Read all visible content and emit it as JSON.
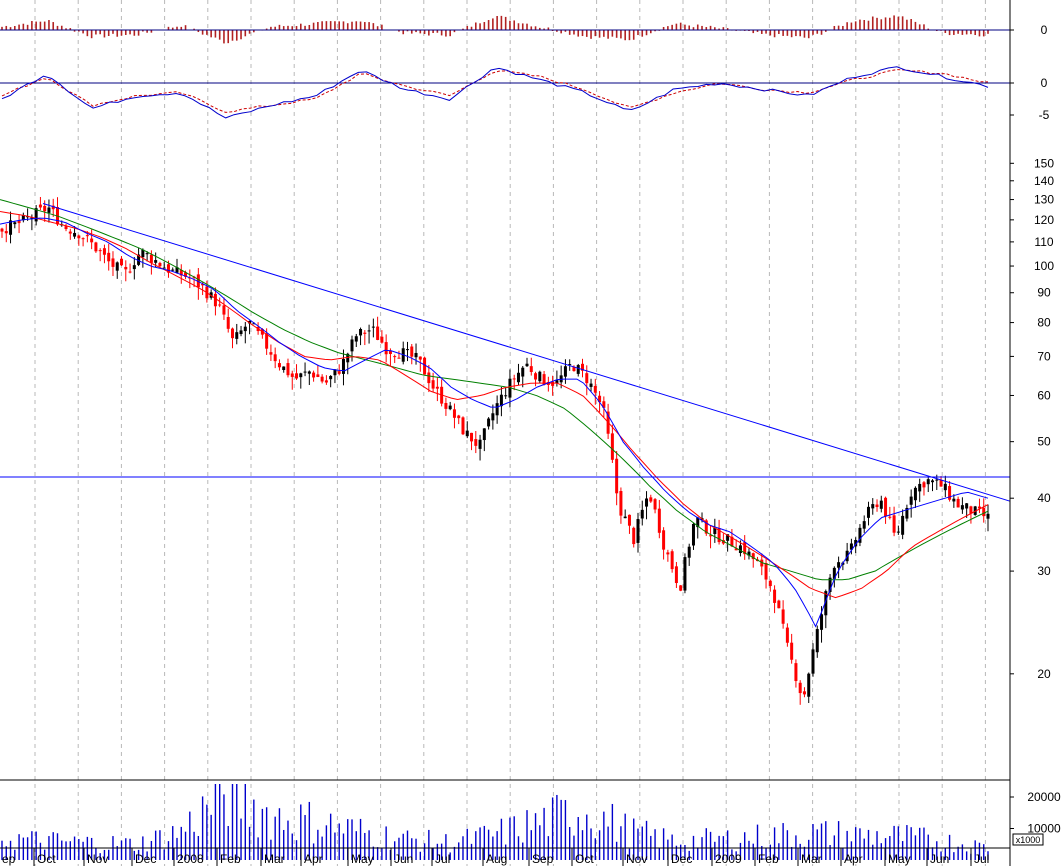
{
  "chart_data": [
    {
      "type": "bar",
      "panel": "histogram-oscillator",
      "zero_label": "0",
      "colors": {
        "bars": "#b22222",
        "zero_line": "#000080"
      },
      "x": [
        "2007-09",
        "2007-10",
        "2007-11",
        "2007-12",
        "2008-01",
        "2008-02",
        "2008-03",
        "2008-04",
        "2008-05",
        "2008-06",
        "2008-07",
        "2008-08",
        "2008-09",
        "2008-10",
        "2008-11",
        "2008-12",
        "2009-01",
        "2009-02",
        "2009-03",
        "2009-04",
        "2009-05",
        "2009-06",
        "2009-07"
      ],
      "values": [
        0.2,
        0.6,
        -0.4,
        -0.3,
        0.3,
        -0.8,
        0.2,
        0.4,
        0.6,
        -0.2,
        -0.3,
        0.9,
        0.2,
        -0.4,
        -0.6,
        0.4,
        0.1,
        -0.3,
        -0.5,
        0.6,
        0.9,
        -0.2,
        -0.3
      ]
    },
    {
      "type": "line",
      "panel": "oscillator",
      "tick_labels": [
        "0",
        "-5"
      ],
      "ylim": [
        -6,
        3
      ],
      "colors": {
        "line": "#0000cc",
        "signal": "#cc0000",
        "zero_line": "#000080"
      },
      "x": [
        "2007-09",
        "2007-10",
        "2007-11",
        "2007-12",
        "2008-01",
        "2008-02",
        "2008-03",
        "2008-04",
        "2008-05",
        "2008-06",
        "2008-07",
        "2008-08",
        "2008-09",
        "2008-10",
        "2008-11",
        "2008-12",
        "2009-01",
        "2009-02",
        "2009-03",
        "2009-04",
        "2009-05",
        "2009-06",
        "2009-07"
      ],
      "series": [
        {
          "values": [
            -2.5,
            1.5,
            -4.0,
            -2.0,
            -1.5,
            -5.5,
            -3.5,
            -2.0,
            2.0,
            -1.0,
            -2.5,
            2.5,
            0.5,
            -1.5,
            -4.5,
            -1.0,
            0.0,
            -1.0,
            -2.0,
            1.0,
            2.5,
            1.0,
            -0.5
          ]
        },
        {
          "values": [
            -2.0,
            1.0,
            -3.5,
            -2.0,
            -1.5,
            -4.5,
            -3.5,
            -2.5,
            1.5,
            -0.5,
            -2.0,
            2.0,
            1.0,
            -1.0,
            -4.0,
            -1.5,
            0.0,
            -1.0,
            -1.5,
            0.5,
            2.0,
            1.5,
            0.0
          ]
        }
      ]
    },
    {
      "type": "candlestick",
      "panel": "price",
      "scale": "log",
      "ylim": [
        17,
        155
      ],
      "tick_labels": [
        "150",
        "140",
        "130",
        "120",
        "110",
        "100",
        "90",
        "80",
        "70",
        "60",
        "50",
        "40",
        "30",
        "20"
      ],
      "tick_values": [
        150,
        140,
        130,
        120,
        110,
        100,
        90,
        80,
        70,
        60,
        50,
        40,
        30,
        20
      ],
      "x_labels": [
        "ep",
        "Oct",
        "Nov",
        "Dec",
        "2008",
        "Feb",
        "Mar",
        "Apr",
        "May",
        "Jun",
        "Jul",
        "Aug",
        "Sep",
        "Oct",
        "Nov",
        "Dec",
        "2009",
        "Feb",
        "Mar",
        "Apr",
        "May",
        "Jun",
        "Jul"
      ],
      "colors": {
        "up": "#000000",
        "down": "#ff0000",
        "ma_short": "#0000ff",
        "ma_mid": "#ff0000",
        "ma_long": "#008000",
        "trendline": "#0000ff",
        "support": "#0000ff"
      },
      "close": [
        116,
        118,
        122,
        126,
        117,
        114,
        108,
        101,
        97,
        106,
        102,
        98,
        96,
        92,
        86,
        74,
        80,
        74,
        68,
        64,
        66,
        63,
        67,
        76,
        78,
        72,
        71,
        69,
        62,
        57,
        52,
        49,
        57,
        63,
        68,
        64,
        63,
        68,
        64,
        57,
        39,
        34,
        41,
        33,
        28,
        37,
        35,
        34,
        33,
        31,
        28,
        22,
        18,
        24,
        31,
        32,
        37,
        40,
        34,
        41,
        43,
        42,
        39,
        38,
        37
      ],
      "ma_short": [
        118,
        120,
        121,
        119,
        114,
        110,
        104,
        100,
        98,
        95,
        91,
        84,
        79,
        74,
        70,
        67,
        66,
        69,
        72,
        70,
        67,
        62,
        59,
        57,
        59,
        62,
        64,
        64,
        58,
        50,
        45,
        41,
        38,
        36,
        35,
        33,
        31,
        28,
        24,
        30,
        34,
        37,
        38,
        39,
        40,
        41,
        40
      ],
      "ma_mid": [
        124,
        122,
        119,
        116,
        112,
        107,
        101,
        96,
        91,
        85,
        79,
        74,
        70,
        69,
        70,
        69,
        65,
        61,
        59,
        60,
        62,
        63,
        63,
        60,
        54,
        48,
        43,
        39,
        36,
        34,
        32,
        30,
        28,
        27,
        28,
        30,
        33,
        35,
        37,
        39
      ],
      "ma_long": [
        130,
        126,
        122,
        117,
        112,
        107,
        101,
        95,
        89,
        83,
        78,
        74,
        71,
        69,
        67,
        65,
        64,
        63,
        62,
        60,
        57,
        52,
        47,
        42,
        38,
        35,
        33,
        31,
        30,
        29,
        29,
        30,
        32,
        34,
        36,
        38
      ],
      "trendline": {
        "from": {
          "x": "2007-10",
          "y": 128
        },
        "to": {
          "x": "2009-07",
          "y": 41
        }
      },
      "support_level": 43.5
    },
    {
      "type": "bar",
      "panel": "volume",
      "tick_labels": [
        "20000",
        "10000"
      ],
      "unit_label": "x1000",
      "colors": {
        "bars": "#0000cc"
      },
      "x": [
        "2007-09",
        "2007-10",
        "2007-11",
        "2007-12",
        "2008-01",
        "2008-02",
        "2008-03",
        "2008-04",
        "2008-05",
        "2008-06",
        "2008-07",
        "2008-08",
        "2008-09",
        "2008-10",
        "2008-11",
        "2008-12",
        "2009-01",
        "2009-02",
        "2009-03",
        "2009-04",
        "2009-05",
        "2009-06",
        "2009-07"
      ],
      "values": [
        7000,
        6000,
        5500,
        5000,
        9000,
        22000,
        14000,
        12000,
        9000,
        6500,
        5500,
        8000,
        12000,
        16000,
        9000,
        6000,
        6500,
        7500,
        8500,
        8000,
        7500,
        6000,
        4000
      ]
    }
  ]
}
